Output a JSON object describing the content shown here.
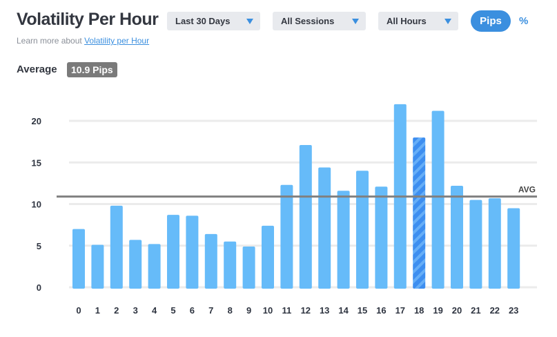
{
  "header": {
    "title": "Volatility Per Hour",
    "learn_prefix": "Learn more about ",
    "learn_link": "Volatility per Hour"
  },
  "filters": {
    "range": "Last 30 Days",
    "session": "All Sessions",
    "hours": "All Hours"
  },
  "units": {
    "pips": "Pips",
    "percent": "%",
    "active": "Pips"
  },
  "average": {
    "label": "Average",
    "badge": "10.9 Pips"
  },
  "colors": {
    "bar": "#66bbf9",
    "bar_highlight": "#3d8ef0",
    "grid": "#ebebeb",
    "avg_line": "#808080",
    "accent": "#3b8fdf"
  },
  "chart_data": {
    "type": "bar",
    "title": "Volatility Per Hour",
    "xlabel": "",
    "ylabel": "",
    "categories": [
      "0",
      "1",
      "2",
      "3",
      "4",
      "5",
      "6",
      "7",
      "8",
      "9",
      "10",
      "11",
      "12",
      "13",
      "14",
      "15",
      "16",
      "17",
      "18",
      "19",
      "20",
      "21",
      "22",
      "23"
    ],
    "values": [
      7.0,
      5.1,
      9.8,
      5.7,
      5.2,
      8.7,
      8.6,
      6.4,
      5.5,
      4.9,
      7.4,
      12.3,
      17.1,
      14.4,
      11.6,
      14.0,
      12.1,
      22.0,
      18.0,
      21.2,
      12.2,
      10.5,
      10.7,
      9.5
    ],
    "highlight_index": 18,
    "average": 10.9,
    "average_label": "AVG",
    "yticks": [
      0,
      5,
      10,
      15,
      20
    ],
    "ylim": [
      0,
      22
    ],
    "grid": true
  }
}
